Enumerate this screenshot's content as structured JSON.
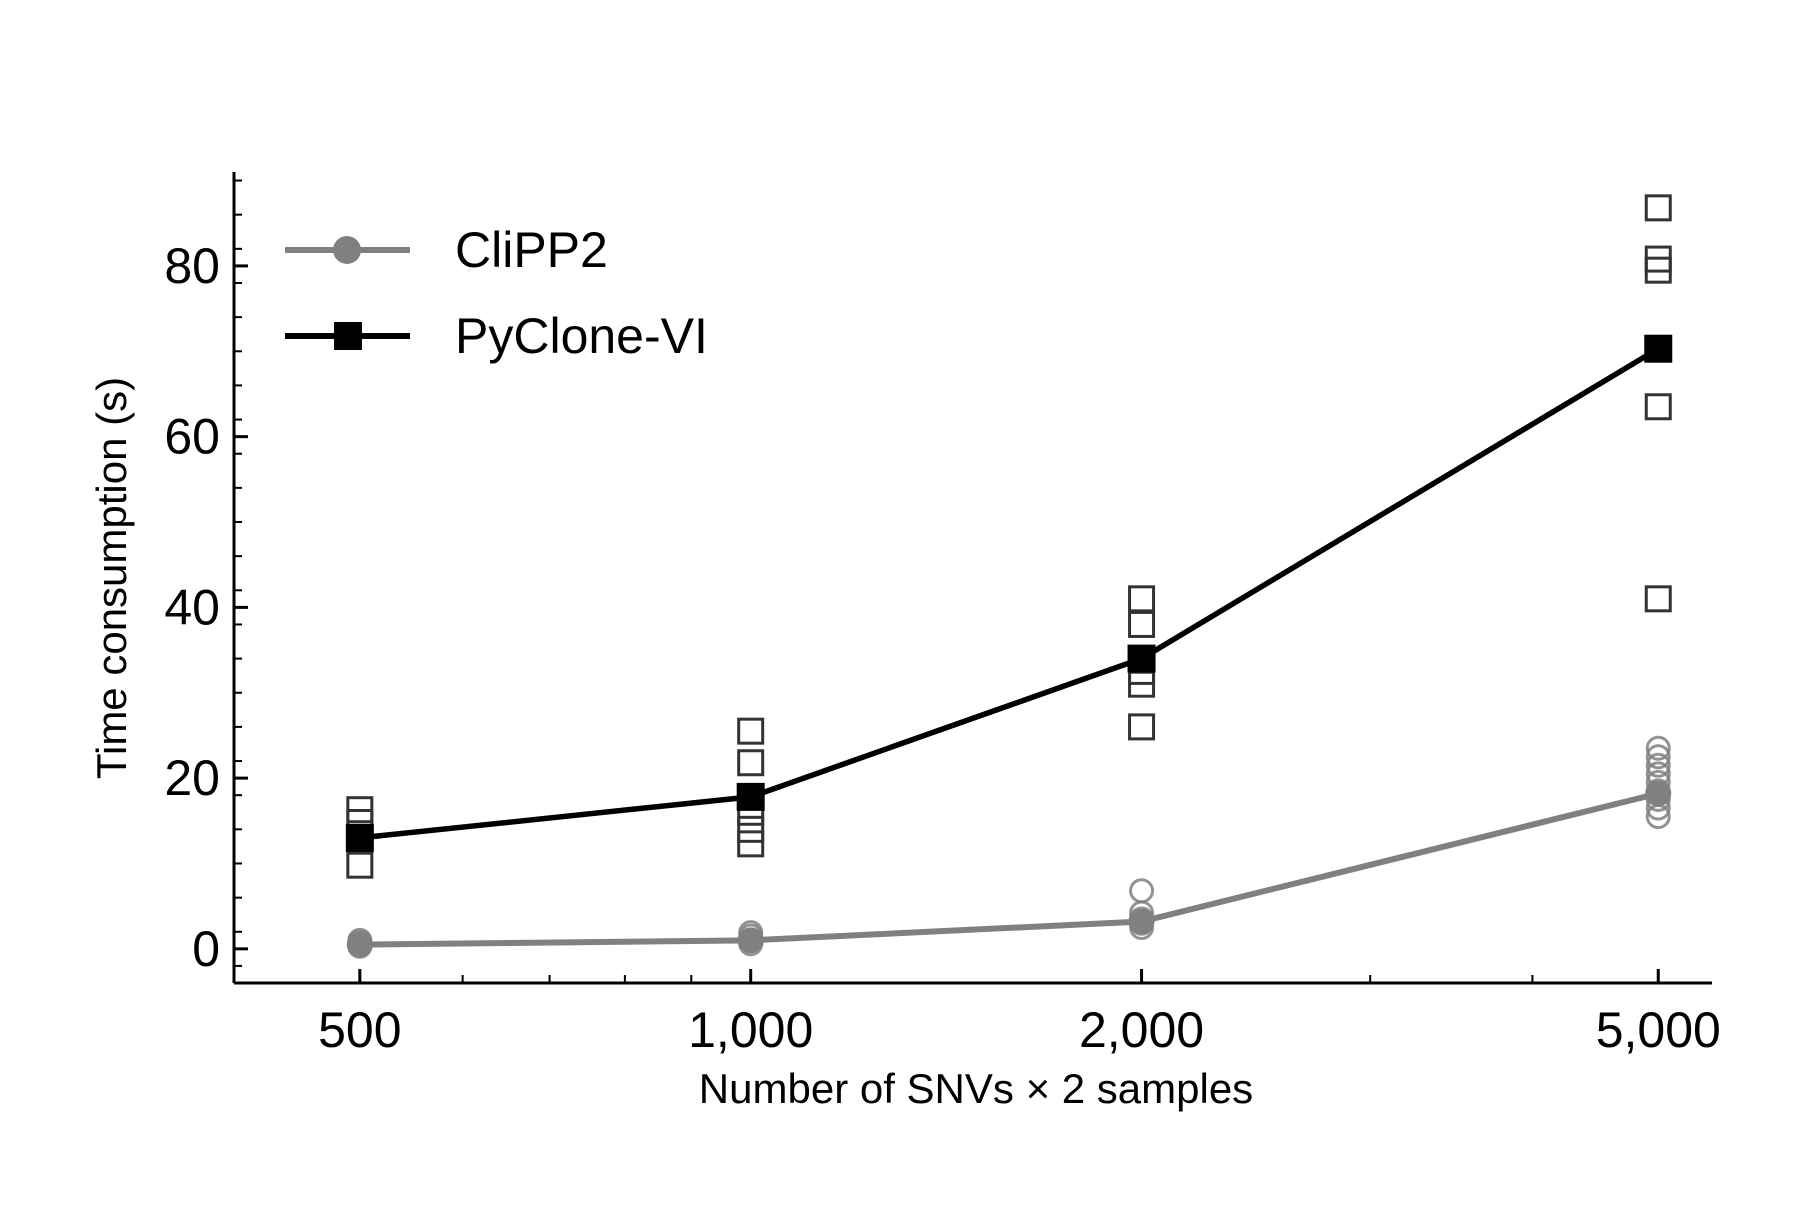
{
  "chart_data": {
    "type": "line",
    "xlabel": "Number of SNVs × 2 samples",
    "ylabel": "Time consumption (s)",
    "x_scale": "log",
    "xlim": [
      400,
      5500
    ],
    "ylim": [
      -4,
      91
    ],
    "x_ticks": [
      500,
      1000,
      2000,
      5000
    ],
    "x_tick_labels": [
      "500",
      "1,000",
      "2,000",
      "5,000"
    ],
    "y_ticks": [
      0,
      20,
      40,
      60,
      80
    ],
    "y_tick_labels": [
      "0",
      "20",
      "40",
      "60",
      "80"
    ],
    "legend_position": "top-left",
    "grid": false,
    "series": [
      {
        "name": "CliPP2",
        "color": "#808080",
        "marker": "circle",
        "x": [
          500,
          1000,
          2000,
          5000
        ],
        "y": [
          0.5,
          1.0,
          3.2,
          18.2
        ],
        "replicates": [
          {
            "x": 500,
            "y": [
              0.3,
              0.5,
              0.8,
              1.0
            ]
          },
          {
            "x": 1000,
            "y": [
              0.6,
              1.0,
              1.5,
              1.9
            ]
          },
          {
            "x": 2000,
            "y": [
              2.5,
              3.0,
              3.5,
              4.2,
              6.8
            ]
          },
          {
            "x": 5000,
            "y": [
              15.5,
              16.5,
              17.5,
              18.5,
              19.5,
              20.5,
              21.5,
              22.5,
              23.5
            ]
          }
        ]
      },
      {
        "name": "PyClone-VI",
        "color": "#000000",
        "marker": "square",
        "x": [
          500,
          1000,
          2000,
          5000
        ],
        "y": [
          13.0,
          17.8,
          34.0,
          70.3
        ],
        "replicates": [
          {
            "x": 500,
            "y": [
              9.8,
              12.8,
              14.8,
              16.3
            ]
          },
          {
            "x": 1000,
            "y": [
              12.3,
              14.0,
              16.0,
              21.8,
              25.5
            ]
          },
          {
            "x": 2000,
            "y": [
              26.0,
              31.0,
              32.5,
              38.0,
              41.0
            ]
          },
          {
            "x": 5000,
            "y": [
              41.0,
              63.5,
              79.5,
              80.8,
              86.8
            ]
          }
        ]
      }
    ]
  }
}
